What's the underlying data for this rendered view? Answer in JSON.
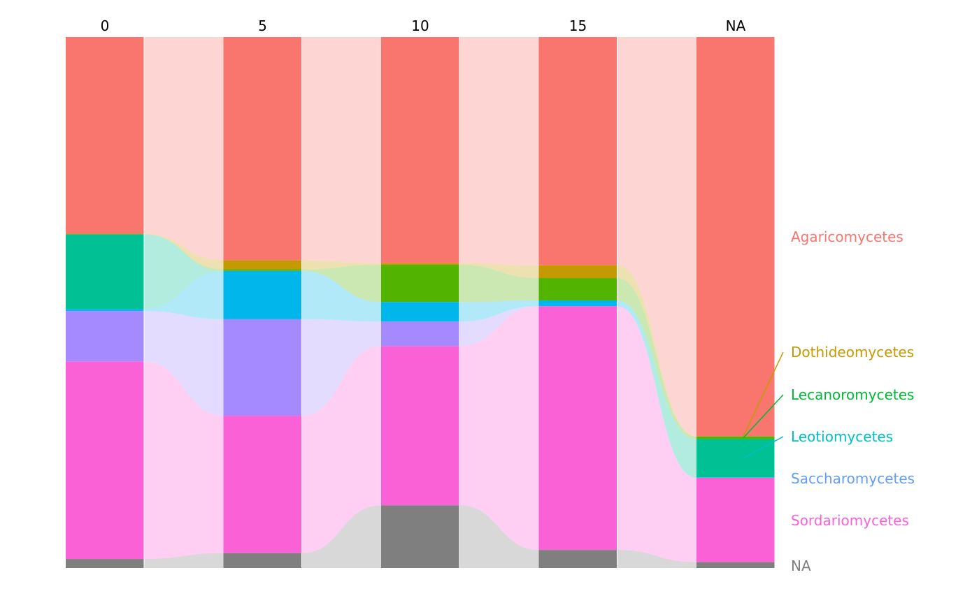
{
  "chart_data": {
    "type": "alluvial",
    "title": "",
    "xlabel": "",
    "ylabel": "",
    "categories": [
      "0",
      "5",
      "10",
      "15",
      "NA"
    ],
    "ylim": [
      0,
      100
    ],
    "grid": false,
    "legend_placement": "right",
    "series": [
      {
        "name": "Agaricomycetes",
        "color": "#F8766D",
        "label_color": "#F8766D",
        "values": [
          37.1,
          42.1,
          42.6,
          43.0,
          75.3
        ]
      },
      {
        "name": "Dothideomycetes",
        "color": "#C49A00",
        "label_color": "#C49A00",
        "values": [
          0.0,
          1.7,
          0.3,
          2.4,
          0.0
        ]
      },
      {
        "name": "Lecanoromycetes",
        "color": "#53B400",
        "label_color": "#00BA38",
        "values": [
          0.1,
          0.3,
          7.0,
          4.2,
          0.5
        ]
      },
      {
        "name": "Leotiomycetes",
        "color": "#00C094",
        "label_color": "#00BFC4",
        "values": [
          14.0,
          0.0,
          0.0,
          0.0,
          7.2
        ]
      },
      {
        "name": "Saccharomycetes",
        "color": "#00B6EB",
        "label_color": "#619CFF",
        "values": [
          0.4,
          9.1,
          3.7,
          1.1,
          0.1
        ]
      },
      {
        "name": "",
        "color": "#A58AFF",
        "label_color": "#A58AFF",
        "values": [
          9.5,
          18.2,
          4.6,
          0.0,
          0.0
        ]
      },
      {
        "name": "Sordariomycetes",
        "color": "#FB61D7",
        "label_color": "#FB61D7",
        "values": [
          37.2,
          25.9,
          30.0,
          45.9,
          15.9
        ]
      },
      {
        "name": "NA",
        "color": "#7F7F7F",
        "label_color": "#7F7F7F",
        "values": [
          1.7,
          2.8,
          11.8,
          3.4,
          1.1
        ]
      }
    ]
  }
}
